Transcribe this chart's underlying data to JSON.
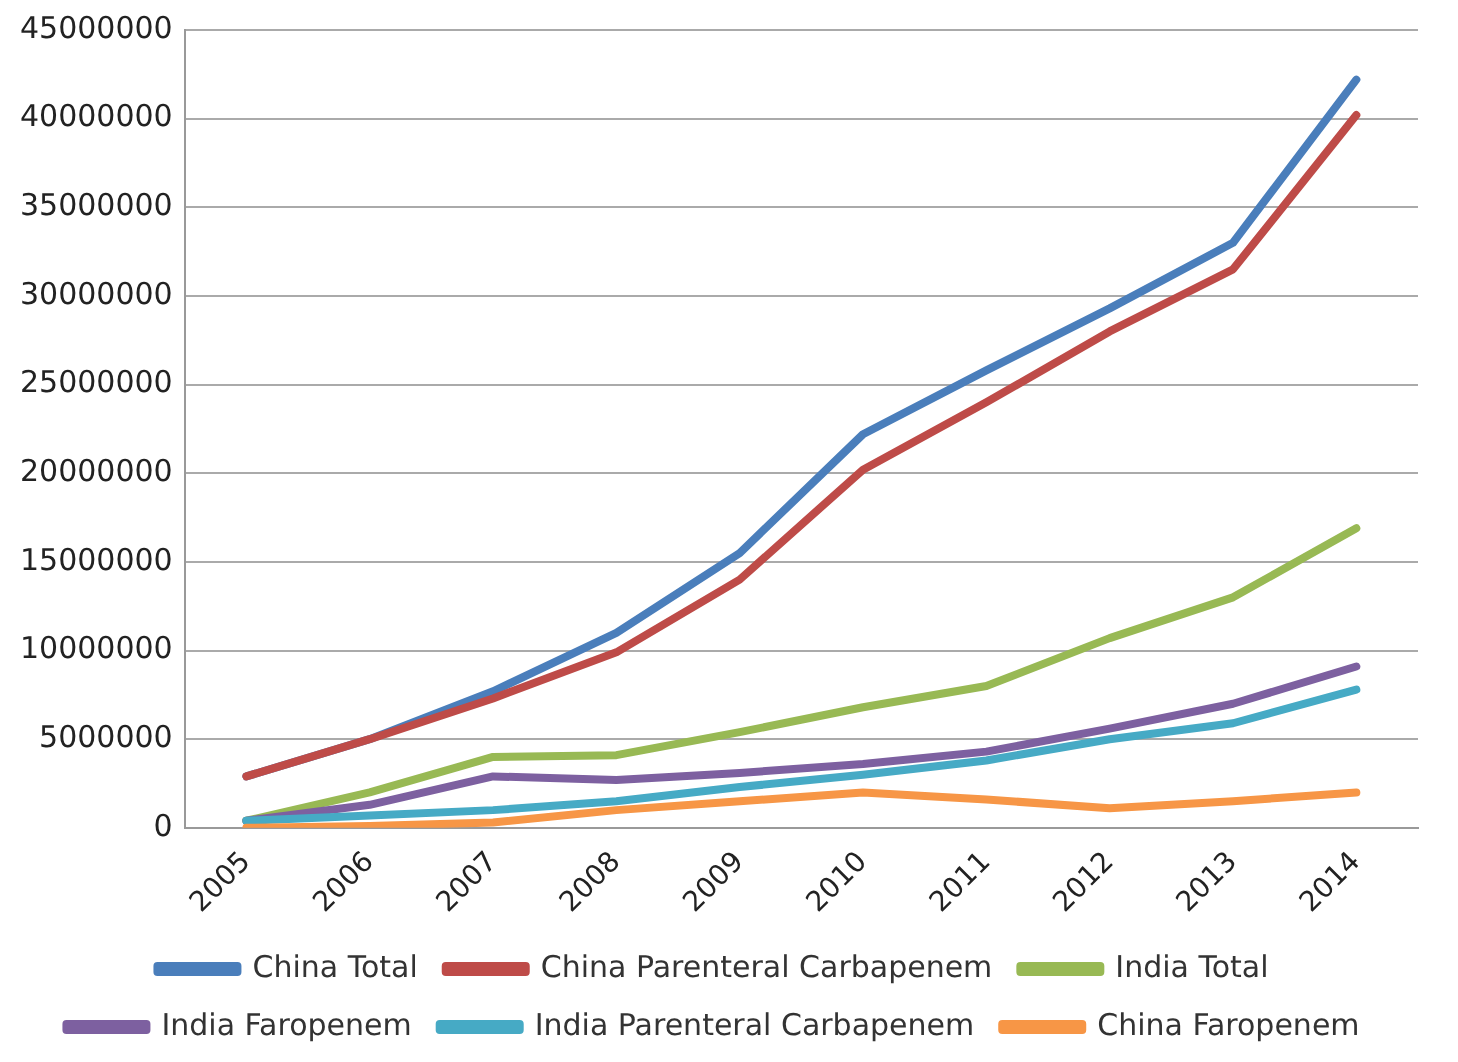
{
  "chart_data": {
    "type": "line",
    "categories": [
      "2005",
      "2006",
      "2007",
      "2008",
      "2009",
      "2010",
      "2011",
      "2012",
      "2013",
      "2014"
    ],
    "series": [
      {
        "name": "China Total",
        "color": "#4a7ebb",
        "values": [
          2900000,
          5000000,
          7700000,
          11000000,
          15500000,
          22200000,
          25800000,
          29300000,
          33000000,
          42200000
        ]
      },
      {
        "name": "China Parenteral Carbapenem",
        "color": "#be4b48",
        "values": [
          2900000,
          5000000,
          7300000,
          9900000,
          14000000,
          20200000,
          24000000,
          28000000,
          31500000,
          40200000
        ]
      },
      {
        "name": "India Total",
        "color": "#98b954",
        "values": [
          400000,
          2000000,
          4000000,
          4100000,
          5400000,
          6800000,
          8000000,
          10700000,
          13000000,
          16900000
        ]
      },
      {
        "name": "India Faropenem",
        "color": "#7d60a0",
        "values": [
          400000,
          1300000,
          2900000,
          2700000,
          3100000,
          3600000,
          4300000,
          5600000,
          7000000,
          9100000
        ]
      },
      {
        "name": "India Parenteral Carbapenem",
        "color": "#46aac5",
        "values": [
          400000,
          700000,
          1000000,
          1500000,
          2300000,
          3000000,
          3800000,
          5000000,
          5900000,
          7800000
        ]
      },
      {
        "name": "China Faropenem",
        "color": "#f79646",
        "values": [
          0,
          100000,
          300000,
          1000000,
          1500000,
          2000000,
          1600000,
          1100000,
          1500000,
          2000000
        ]
      }
    ],
    "ylim": [
      0,
      45000000
    ],
    "yticks": [
      0,
      5000000,
      10000000,
      15000000,
      20000000,
      25000000,
      30000000,
      35000000,
      40000000,
      45000000
    ],
    "grid": "y",
    "legend": "bottom",
    "marker": "none",
    "line_style": "solid"
  }
}
